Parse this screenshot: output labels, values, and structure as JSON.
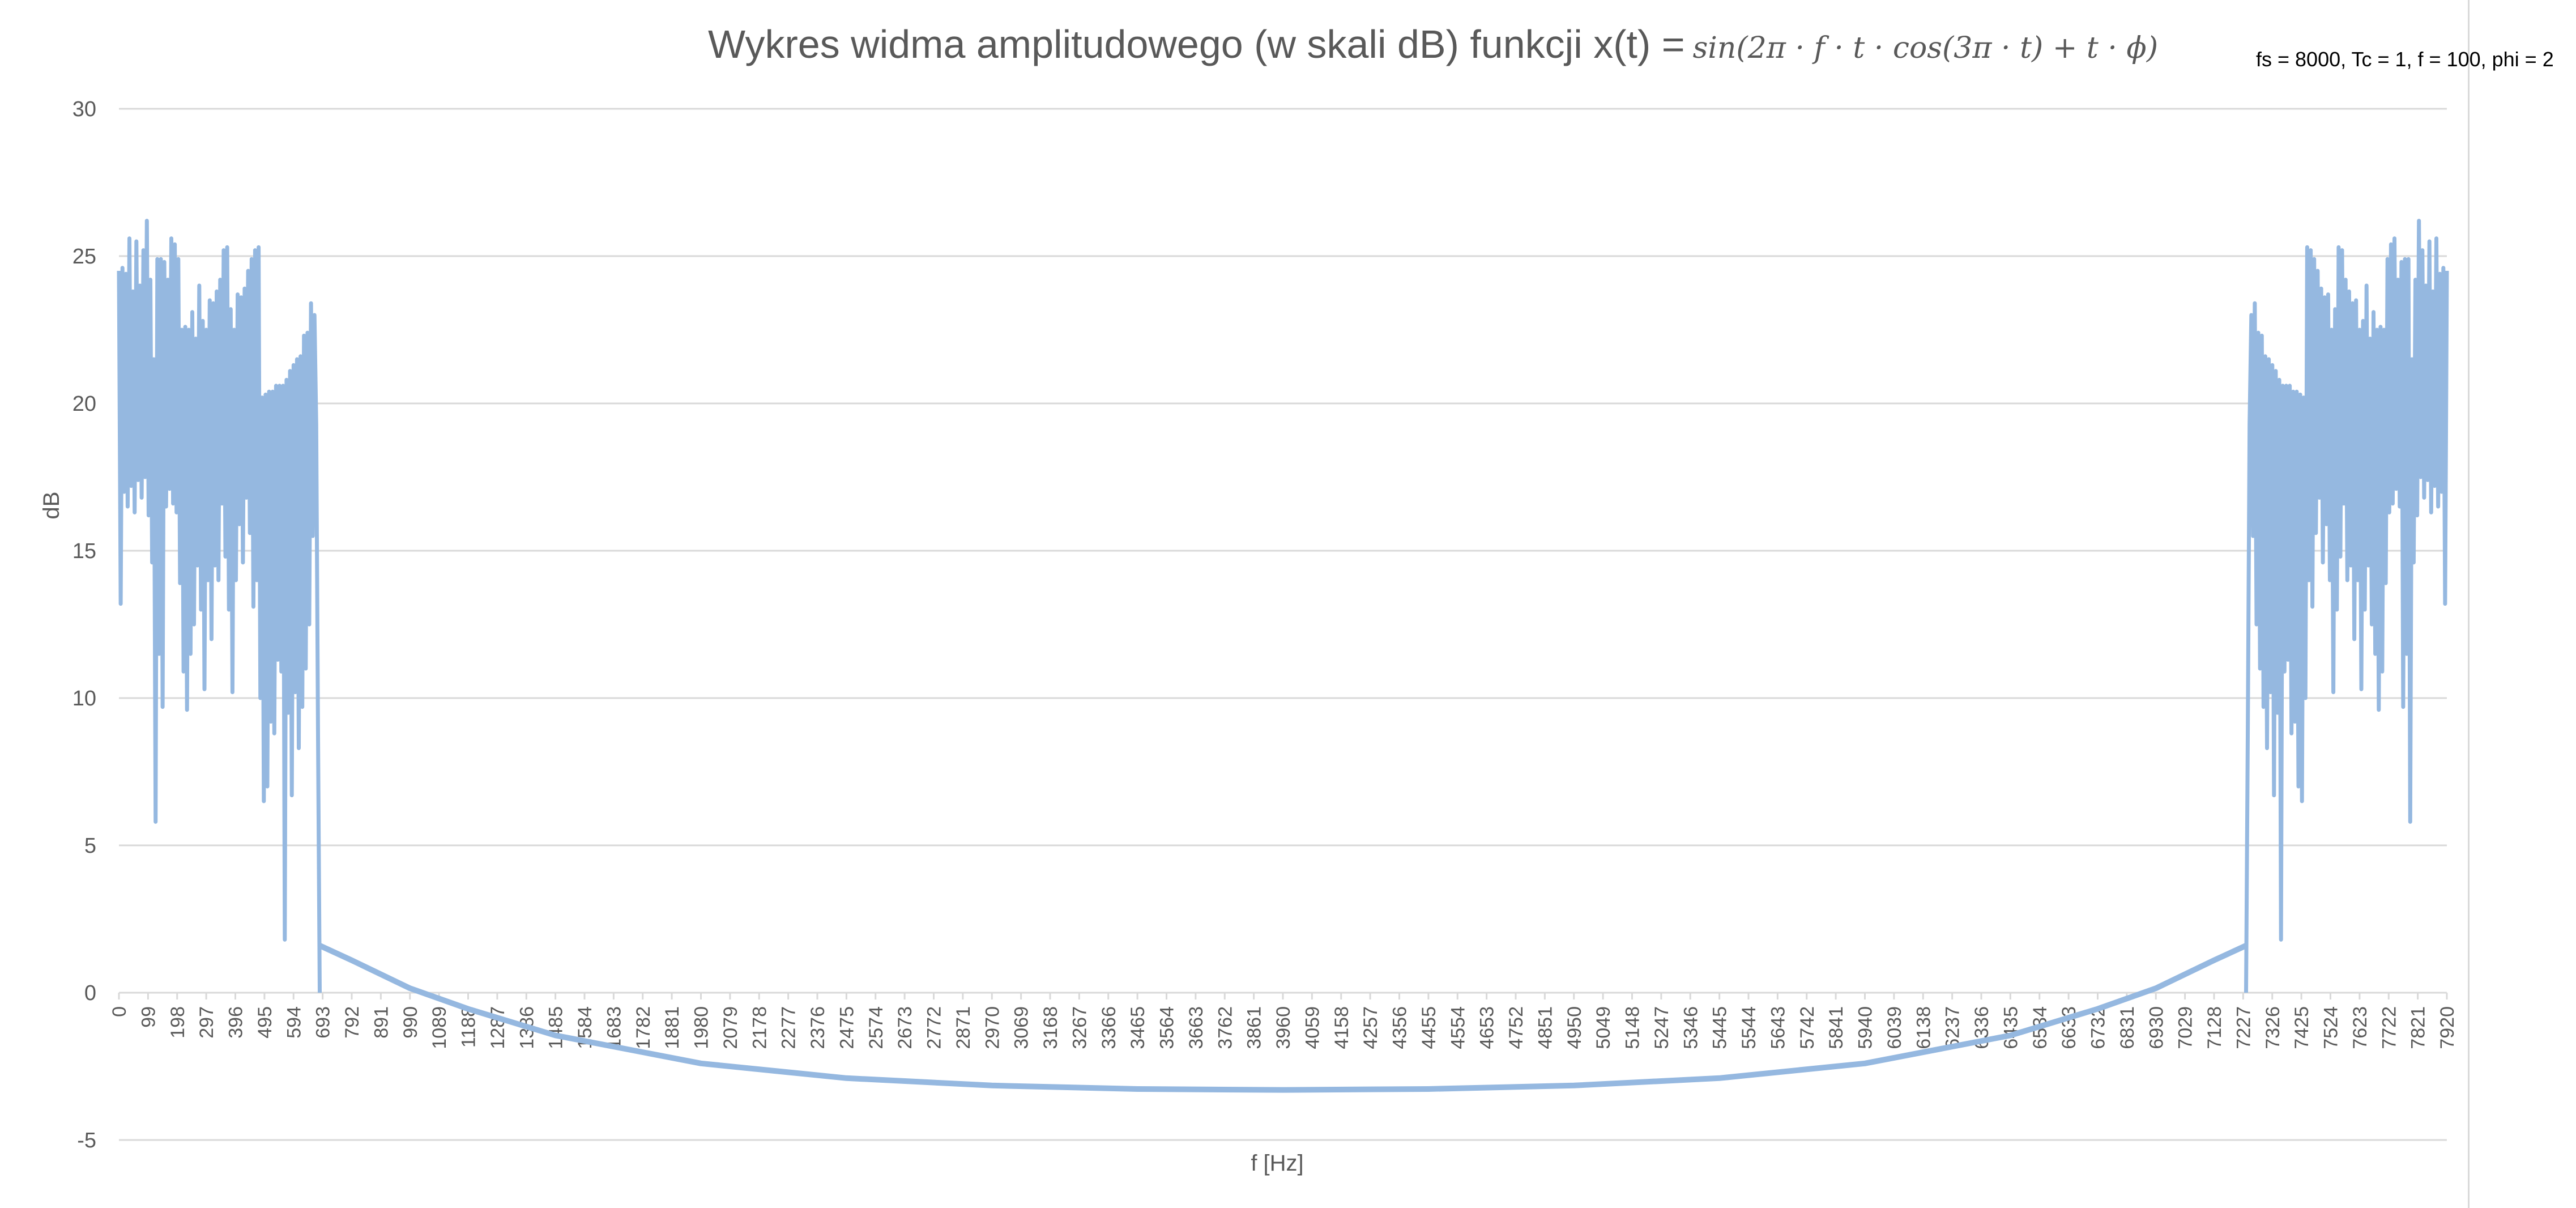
{
  "chart_data": {
    "type": "line",
    "title": "Wykres widma amplitudowego (w skali dB) funkcji x(t) =",
    "title_formula": "sin(2π · f · t · cos(3π · t) + t · ϕ)",
    "annotation": "fs = 8000, Tc = 1, f = 100, phi = 2",
    "xlabel": "f [Hz]",
    "ylabel": "dB",
    "ylim": [
      -5,
      30
    ],
    "xlim": [
      0,
      8000
    ],
    "yticks": [
      -5,
      0,
      5,
      10,
      15,
      20,
      25,
      30
    ],
    "xticks": [
      "0",
      "99",
      "198",
      "297",
      "396",
      "495",
      "594",
      "693",
      "792",
      "891",
      "990",
      "1089",
      "1188",
      "1287",
      "1386",
      "1485",
      "1584",
      "1683",
      "1782",
      "1881",
      "1980",
      "2079",
      "2178",
      "2277",
      "2376",
      "2475",
      "2574",
      "2673",
      "2772",
      "2871",
      "2970",
      "3069",
      "3168",
      "3267",
      "3366",
      "3465",
      "3564",
      "3663",
      "3762",
      "3861",
      "3960",
      "4059",
      "4158",
      "4257",
      "4356",
      "4455",
      "4554",
      "4653",
      "4752",
      "4851",
      "4950",
      "5049",
      "5148",
      "5247",
      "5346",
      "5445",
      "5544",
      "5643",
      "5742",
      "5841",
      "5940",
      "6039",
      "6138",
      "6237",
      "6336",
      "6435",
      "6534",
      "6633",
      "6732",
      "6831",
      "6930",
      "7029",
      "7128",
      "7227",
      "7326",
      "7425",
      "7524",
      "7623",
      "7722",
      "7821",
      "7920"
    ],
    "grid": true,
    "legend": "none",
    "color": "#95b8e0",
    "series": [
      {
        "values_left_band": [
          [
            0,
            24.5
          ],
          [
            6,
            13.2
          ],
          [
            12,
            24.6
          ],
          [
            18,
            17.0
          ],
          [
            24,
            24.4
          ],
          [
            30,
            16.5
          ],
          [
            36,
            25.6
          ],
          [
            42,
            17.2
          ],
          [
            48,
            23.8
          ],
          [
            54,
            16.3
          ],
          [
            60,
            25.5
          ],
          [
            66,
            17.4
          ],
          [
            72,
            24.0
          ],
          [
            78,
            16.8
          ],
          [
            84,
            25.2
          ],
          [
            90,
            17.5
          ],
          [
            96,
            26.2
          ],
          [
            102,
            16.2
          ],
          [
            108,
            24.2
          ],
          [
            114,
            14.6
          ],
          [
            120,
            21.5
          ],
          [
            126,
            5.8
          ],
          [
            132,
            24.9
          ],
          [
            138,
            11.5
          ],
          [
            144,
            24.9
          ],
          [
            150,
            9.7
          ],
          [
            156,
            24.8
          ],
          [
            162,
            16.5
          ],
          [
            168,
            24.2
          ],
          [
            174,
            17.1
          ],
          [
            180,
            25.6
          ],
          [
            186,
            16.6
          ],
          [
            192,
            25.4
          ],
          [
            198,
            16.3
          ],
          [
            204,
            24.9
          ],
          [
            210,
            13.9
          ],
          [
            216,
            22.5
          ],
          [
            222,
            10.9
          ],
          [
            228,
            22.6
          ],
          [
            234,
            9.6
          ],
          [
            240,
            22.5
          ],
          [
            246,
            11.5
          ],
          [
            252,
            23.1
          ],
          [
            258,
            12.5
          ],
          [
            264,
            22.2
          ],
          [
            270,
            14.5
          ],
          [
            276,
            24.0
          ],
          [
            282,
            13.0
          ],
          [
            288,
            22.8
          ],
          [
            294,
            10.3
          ],
          [
            300,
            22.5
          ],
          [
            306,
            14.0
          ],
          [
            312,
            23.5
          ],
          [
            318,
            12.0
          ],
          [
            324,
            23.4
          ],
          [
            330,
            14.5
          ],
          [
            336,
            23.8
          ],
          [
            342,
            14.0
          ],
          [
            348,
            24.2
          ],
          [
            354,
            16.6
          ],
          [
            360,
            25.2
          ],
          [
            366,
            14.8
          ],
          [
            372,
            25.3
          ],
          [
            378,
            13.0
          ],
          [
            384,
            23.2
          ],
          [
            390,
            10.2
          ],
          [
            396,
            22.5
          ],
          [
            402,
            14.0
          ],
          [
            408,
            23.7
          ],
          [
            414,
            15.9
          ],
          [
            420,
            23.6
          ],
          [
            426,
            14.6
          ],
          [
            432,
            23.9
          ],
          [
            438,
            16.8
          ],
          [
            444,
            24.5
          ],
          [
            450,
            15.6
          ],
          [
            456,
            24.9
          ],
          [
            462,
            13.1
          ],
          [
            468,
            25.2
          ],
          [
            474,
            14.0
          ],
          [
            480,
            25.3
          ],
          [
            486,
            10.0
          ],
          [
            492,
            20.2
          ],
          [
            498,
            6.5
          ],
          [
            504,
            20.3
          ],
          [
            510,
            7.0
          ],
          [
            516,
            20.4
          ],
          [
            522,
            9.2
          ],
          [
            528,
            20.4
          ],
          [
            534,
            8.8
          ],
          [
            540,
            20.6
          ],
          [
            546,
            11.3
          ],
          [
            552,
            20.6
          ],
          [
            558,
            10.9
          ],
          [
            564,
            20.6
          ],
          [
            570,
            1.8
          ],
          [
            576,
            20.8
          ],
          [
            582,
            9.5
          ],
          [
            588,
            21.1
          ],
          [
            594,
            6.7
          ],
          [
            600,
            21.3
          ],
          [
            606,
            10.2
          ],
          [
            612,
            21.5
          ],
          [
            618,
            8.3
          ],
          [
            624,
            21.6
          ],
          [
            630,
            9.7
          ],
          [
            636,
            22.3
          ],
          [
            642,
            11.0
          ],
          [
            648,
            22.4
          ],
          [
            654,
            12.5
          ],
          [
            660,
            23.4
          ],
          [
            666,
            15.5
          ],
          [
            672,
            23.0
          ],
          [
            678,
            19.3
          ],
          [
            684,
            9.0
          ],
          [
            690,
            0.0
          ]
        ],
        "values_decay": [
          [
            690,
            1.6
          ],
          [
            800,
            1.1
          ],
          [
            1000,
            0.15
          ],
          [
            1200,
            -0.55
          ],
          [
            1500,
            -1.45
          ],
          [
            2000,
            -2.4
          ],
          [
            2500,
            -2.9
          ],
          [
            3000,
            -3.15
          ],
          [
            3500,
            -3.27
          ],
          [
            4000,
            -3.3
          ],
          [
            4500,
            -3.27
          ],
          [
            5000,
            -3.15
          ],
          [
            5500,
            -2.9
          ],
          [
            6000,
            -2.4
          ],
          [
            6500,
            -1.45
          ],
          [
            6800,
            -0.55
          ],
          [
            7000,
            0.15
          ],
          [
            7200,
            1.1
          ],
          [
            7310,
            1.6
          ]
        ]
      }
    ]
  }
}
